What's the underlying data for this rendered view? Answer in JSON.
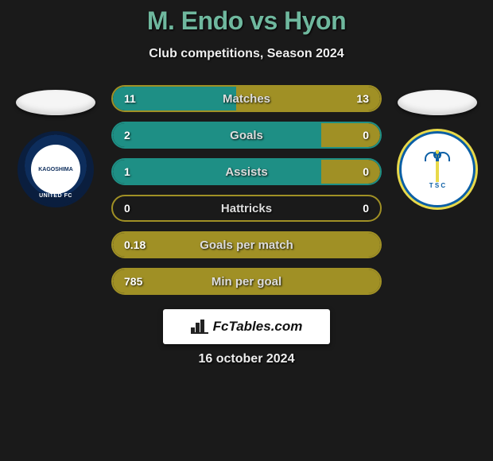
{
  "title": "M. Endo vs Hyon",
  "subtitle": "Club competitions, Season 2024",
  "date": "16 october 2024",
  "fctables_label": "FcTables.com",
  "colors": {
    "title": "#6fb89e",
    "olive": "#a09025",
    "olive_fill": "#a09025",
    "teal_border": "#1e8f85",
    "teal_fill": "#1e8f85",
    "bg": "#1a1a1a"
  },
  "player_left": {
    "name": "M. Endo",
    "club": "Kagoshima United FC",
    "badge_text": "KAGOSHIMA",
    "badge_ring": "UNITED FC"
  },
  "player_right": {
    "name": "Hyon",
    "club": "Tochigi SC",
    "badge_letters": "T S C"
  },
  "stats": [
    {
      "label": "Matches",
      "left_value": "11",
      "right_value": "13",
      "left_pct": 46,
      "right_pct": 54,
      "left_color": "#1e8f85",
      "right_color": "#a09025",
      "border_color": "#a09025"
    },
    {
      "label": "Goals",
      "left_value": "2",
      "right_value": "0",
      "left_pct": 78,
      "right_pct": 22,
      "left_color": "#1e8f85",
      "right_color": "#a09025",
      "border_color": "#1e8f85"
    },
    {
      "label": "Assists",
      "left_value": "1",
      "right_value": "0",
      "left_pct": 78,
      "right_pct": 22,
      "left_color": "#1e8f85",
      "right_color": "#a09025",
      "border_color": "#1e8f85"
    },
    {
      "label": "Hattricks",
      "left_value": "0",
      "right_value": "0",
      "left_pct": 0,
      "right_pct": 0,
      "left_color": "#a09025",
      "right_color": "#a09025",
      "border_color": "#a09025"
    },
    {
      "label": "Goals per match",
      "left_value": "0.18",
      "right_value": "",
      "left_pct": 100,
      "right_pct": 0,
      "left_color": "#a09025",
      "right_color": "#a09025",
      "border_color": "#a09025"
    },
    {
      "label": "Min per goal",
      "left_value": "785",
      "right_value": "",
      "left_pct": 100,
      "right_pct": 0,
      "left_color": "#a09025",
      "right_color": "#a09025",
      "border_color": "#a09025"
    }
  ]
}
